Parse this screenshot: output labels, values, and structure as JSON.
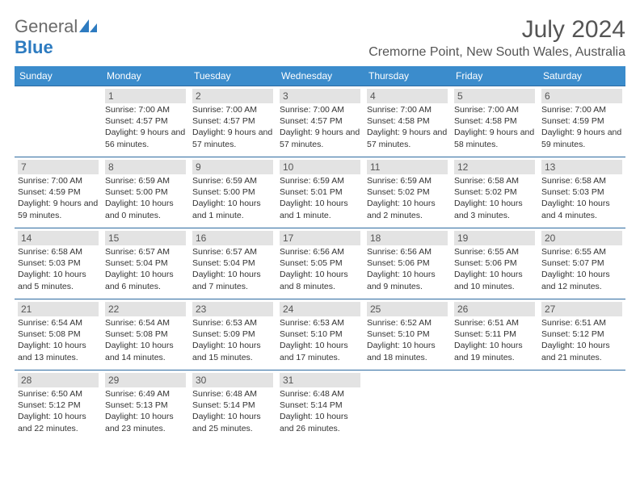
{
  "logo": {
    "part1": "General",
    "part2": "Blue"
  },
  "title": "July 2024",
  "location": "Cremorne Point, New South Wales, Australia",
  "colors": {
    "header_bg": "#3b8ccc",
    "header_fg": "#ffffff",
    "row_border": "#2d6aa0",
    "daynum_bg": "#e3e3e3",
    "logo_gray": "#6a6a6a",
    "logo_blue": "#2d7bc0"
  },
  "weekdays": [
    "Sunday",
    "Monday",
    "Tuesday",
    "Wednesday",
    "Thursday",
    "Friday",
    "Saturday"
  ],
  "days": [
    null,
    {
      "n": "1",
      "sr": "7:00 AM",
      "ss": "4:57 PM",
      "dl": "9 hours and 56 minutes."
    },
    {
      "n": "2",
      "sr": "7:00 AM",
      "ss": "4:57 PM",
      "dl": "9 hours and 57 minutes."
    },
    {
      "n": "3",
      "sr": "7:00 AM",
      "ss": "4:57 PM",
      "dl": "9 hours and 57 minutes."
    },
    {
      "n": "4",
      "sr": "7:00 AM",
      "ss": "4:58 PM",
      "dl": "9 hours and 57 minutes."
    },
    {
      "n": "5",
      "sr": "7:00 AM",
      "ss": "4:58 PM",
      "dl": "9 hours and 58 minutes."
    },
    {
      "n": "6",
      "sr": "7:00 AM",
      "ss": "4:59 PM",
      "dl": "9 hours and 59 minutes."
    },
    {
      "n": "7",
      "sr": "7:00 AM",
      "ss": "4:59 PM",
      "dl": "9 hours and 59 minutes."
    },
    {
      "n": "8",
      "sr": "6:59 AM",
      "ss": "5:00 PM",
      "dl": "10 hours and 0 minutes."
    },
    {
      "n": "9",
      "sr": "6:59 AM",
      "ss": "5:00 PM",
      "dl": "10 hours and 1 minute."
    },
    {
      "n": "10",
      "sr": "6:59 AM",
      "ss": "5:01 PM",
      "dl": "10 hours and 1 minute."
    },
    {
      "n": "11",
      "sr": "6:59 AM",
      "ss": "5:02 PM",
      "dl": "10 hours and 2 minutes."
    },
    {
      "n": "12",
      "sr": "6:58 AM",
      "ss": "5:02 PM",
      "dl": "10 hours and 3 minutes."
    },
    {
      "n": "13",
      "sr": "6:58 AM",
      "ss": "5:03 PM",
      "dl": "10 hours and 4 minutes."
    },
    {
      "n": "14",
      "sr": "6:58 AM",
      "ss": "5:03 PM",
      "dl": "10 hours and 5 minutes."
    },
    {
      "n": "15",
      "sr": "6:57 AM",
      "ss": "5:04 PM",
      "dl": "10 hours and 6 minutes."
    },
    {
      "n": "16",
      "sr": "6:57 AM",
      "ss": "5:04 PM",
      "dl": "10 hours and 7 minutes."
    },
    {
      "n": "17",
      "sr": "6:56 AM",
      "ss": "5:05 PM",
      "dl": "10 hours and 8 minutes."
    },
    {
      "n": "18",
      "sr": "6:56 AM",
      "ss": "5:06 PM",
      "dl": "10 hours and 9 minutes."
    },
    {
      "n": "19",
      "sr": "6:55 AM",
      "ss": "5:06 PM",
      "dl": "10 hours and 10 minutes."
    },
    {
      "n": "20",
      "sr": "6:55 AM",
      "ss": "5:07 PM",
      "dl": "10 hours and 12 minutes."
    },
    {
      "n": "21",
      "sr": "6:54 AM",
      "ss": "5:08 PM",
      "dl": "10 hours and 13 minutes."
    },
    {
      "n": "22",
      "sr": "6:54 AM",
      "ss": "5:08 PM",
      "dl": "10 hours and 14 minutes."
    },
    {
      "n": "23",
      "sr": "6:53 AM",
      "ss": "5:09 PM",
      "dl": "10 hours and 15 minutes."
    },
    {
      "n": "24",
      "sr": "6:53 AM",
      "ss": "5:10 PM",
      "dl": "10 hours and 17 minutes."
    },
    {
      "n": "25",
      "sr": "6:52 AM",
      "ss": "5:10 PM",
      "dl": "10 hours and 18 minutes."
    },
    {
      "n": "26",
      "sr": "6:51 AM",
      "ss": "5:11 PM",
      "dl": "10 hours and 19 minutes."
    },
    {
      "n": "27",
      "sr": "6:51 AM",
      "ss": "5:12 PM",
      "dl": "10 hours and 21 minutes."
    },
    {
      "n": "28",
      "sr": "6:50 AM",
      "ss": "5:12 PM",
      "dl": "10 hours and 22 minutes."
    },
    {
      "n": "29",
      "sr": "6:49 AM",
      "ss": "5:13 PM",
      "dl": "10 hours and 23 minutes."
    },
    {
      "n": "30",
      "sr": "6:48 AM",
      "ss": "5:14 PM",
      "dl": "10 hours and 25 minutes."
    },
    {
      "n": "31",
      "sr": "6:48 AM",
      "ss": "5:14 PM",
      "dl": "10 hours and 26 minutes."
    },
    null,
    null,
    null
  ],
  "labels": {
    "sunrise": "Sunrise:",
    "sunset": "Sunset:",
    "daylight": "Daylight:"
  }
}
